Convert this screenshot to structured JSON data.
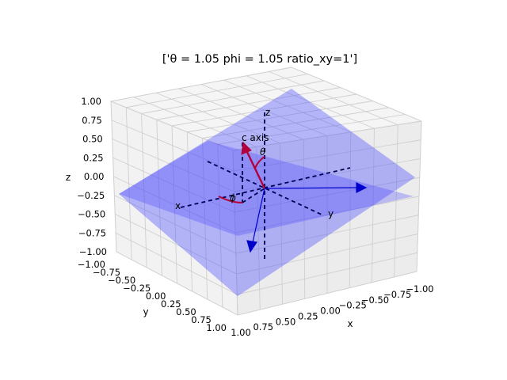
{
  "chart_data": {
    "type": "3d-surface",
    "title": "['θ = 1.05 phi = 1.05 ratio_xy=1']",
    "xlabel": "x",
    "ylabel": "y",
    "zlabel": "z",
    "xlim": [
      -1,
      1
    ],
    "ylim": [
      -1,
      1
    ],
    "zlim": [
      -1,
      1
    ],
    "x_ticks": [
      "−1.00",
      "−0.75",
      "−0.50",
      "−0.25",
      "0.00",
      "0.25",
      "0.50",
      "0.75",
      "1.00"
    ],
    "y_ticks": [
      "−1.00",
      "−0.75",
      "−0.50",
      "−0.25",
      "0.00",
      "0.25",
      "0.50",
      "0.75",
      "1.00"
    ],
    "z_ticks": [
      "−1.00",
      "−0.75",
      "−0.50",
      "−0.25",
      "0.00",
      "0.25",
      "0.50",
      "0.75",
      "1.00"
    ],
    "grid": true,
    "annotations": {
      "c_axis_label": "c axis",
      "theta_label": "θ",
      "phi_label": "ϕ",
      "axis_x_label": "x",
      "axis_y_label": "y",
      "axis_z_label": "z"
    },
    "colors": {
      "plane_fill": "#3b3bff",
      "dashed_axis": "#000055",
      "blue_arrow": "#0000cc",
      "c_axis_arrow": "#b3003c"
    }
  }
}
